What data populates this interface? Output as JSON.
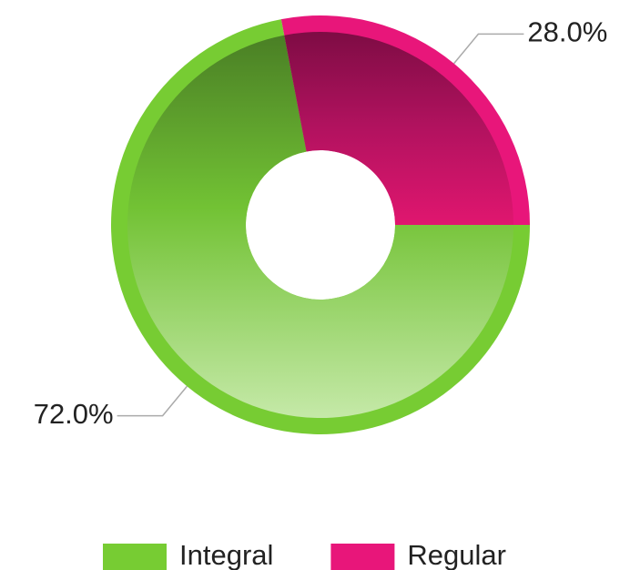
{
  "chart_data": {
    "type": "donut",
    "categories": [
      "Integral",
      "Regular"
    ],
    "values": [
      72,
      28
    ],
    "value_labels": [
      "72.0%",
      "28.0%"
    ],
    "colors": [
      "#77cc33",
      "#e8167a"
    ],
    "legend": "bottom"
  }
}
